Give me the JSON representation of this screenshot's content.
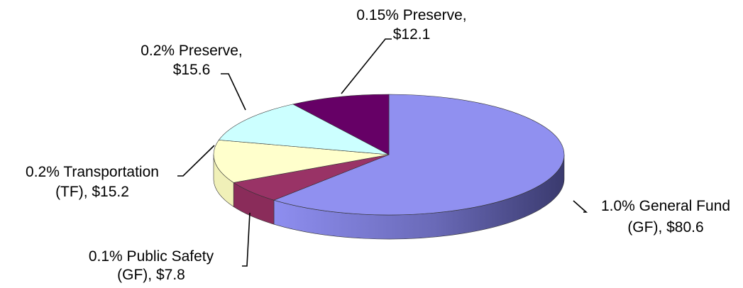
{
  "chart_data": {
    "type": "pie",
    "title": "",
    "slices": [
      {
        "label_line1": "1.0% General Fund",
        "label_line2": "(GF),  $80.6",
        "value": 80.6,
        "color": "#9090f0",
        "side_color": "#7f7fd6"
      },
      {
        "label_line1": "0.1% Public Safety",
        "label_line2": "(GF),  $7.8",
        "value": 7.8,
        "color": "#993366",
        "side_color": "#8a2c5a"
      },
      {
        "label_line1": "0.2% Transportation",
        "label_line2": "(TF),  $15.2",
        "value": 15.2,
        "color": "#ffffcc",
        "side_color": "#f0f0b8"
      },
      {
        "label_line1": "0.2% Preserve,",
        "label_line2": "$15.6",
        "value": 15.6,
        "color": "#ccffff",
        "side_color": "#b8ecec"
      },
      {
        "label_line1": "0.15% Preserve,",
        "label_line2": "$12.1",
        "value": 12.1,
        "color": "#660066",
        "side_color": "#550055"
      }
    ],
    "legend": "none",
    "style": "3d-tilted"
  }
}
